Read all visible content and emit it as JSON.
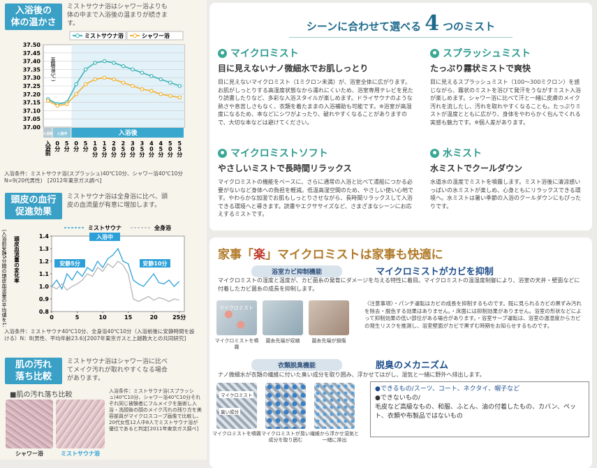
{
  "temp_section": {
    "heading": [
      "入浴後の",
      "体の温かさ"
    ],
    "intro": "ミストサウナ浴はシャワー浴よりも体の中まで入浴後の温まりが続きます。",
    "note": "入浴条件：ミストサウナ浴(スプラッシュ)40℃10分、シャワー浴40℃10分　N=9(20代男性)　[2012年東京ガス調べ]",
    "chart_data": {
      "type": "line",
      "ylabel": "直腸温(℃)",
      "phases": [
        "入浴前",
        "入浴中",
        "入浴後"
      ],
      "categories": [
        "入浴前",
        "0分",
        "5分",
        "0分",
        "5分",
        "10分",
        "15分",
        "20分",
        "25分",
        "30分",
        "35分",
        "40分",
        "45分",
        "50分",
        "55分"
      ],
      "series": [
        {
          "name": "ミストサウナ浴",
          "color": "#3bb3b8",
          "values": [
            37.17,
            37.14,
            37.15,
            37.26,
            37.35,
            37.39,
            37.4,
            37.39,
            37.37,
            37.35,
            37.33,
            37.31,
            37.29,
            37.27,
            37.25
          ]
        },
        {
          "name": "シャワー浴",
          "color": "#f2b134",
          "values": [
            37.16,
            37.13,
            37.14,
            37.2,
            37.26,
            37.29,
            37.3,
            37.29,
            37.27,
            37.25,
            37.23,
            37.22,
            37.2,
            37.19,
            37.18
          ]
        }
      ],
      "ylim": [
        37.0,
        37.5
      ],
      "yticks": [
        {
          "value": 37.0,
          "label": "37.00"
        },
        37.05,
        {
          "value": 37.1,
          "label": "37.10"
        },
        37.15,
        {
          "value": 37.2,
          "label": "37.20"
        },
        37.25,
        {
          "value": 37.3,
          "label": "37.30"
        },
        37.35,
        {
          "value": 37.4,
          "label": "37.40"
        },
        37.45,
        {
          "value": 37.5,
          "label": "37.50"
        }
      ],
      "grid": true
    }
  },
  "blood_section": {
    "heading": [
      "頭皮の血行",
      "促進効果"
    ],
    "intro": "ミストサウナ浴は全身浴に比べ、頭皮の血流量が有意に増加します。",
    "note": "入浴条件：ミストサウナ40℃10分、全身浴40℃10分（入浴前後に安静時間を設ける）N：8(男性、平均年齢23.6)[2007年東京ガスと上越教大との共同研究]",
    "chart_data": {
      "type": "line",
      "ylabel": "頭皮血流量の変化率",
      "ylabel_note": "（入浴前安静5分間の頭皮血流量の平均値を1とする）",
      "annotations": [
        "安静5分",
        "入浴中",
        "安静10分"
      ],
      "x": [
        0,
        1,
        2,
        3,
        4,
        5,
        6,
        7,
        8,
        9,
        10,
        11,
        12,
        13,
        14,
        15,
        16,
        17,
        18,
        19,
        20,
        21,
        22,
        23,
        24,
        25
      ],
      "series": [
        {
          "name": "ミストサウナ",
          "color": "#2a9fd8",
          "values": [
            1.0,
            1.05,
            0.98,
            1.1,
            1.05,
            1.12,
            1.08,
            1.15,
            1.12,
            1.2,
            1.15,
            1.22,
            1.25,
            1.3,
            1.2,
            1.18,
            1.05,
            1.02,
            1.0,
            1.05,
            1.1,
            1.03,
            1.02,
            1.05,
            1.0,
            1.04
          ]
        },
        {
          "name": "全身浴",
          "color": "#b5b5b5",
          "values": [
            1.0,
            0.98,
            1.02,
            0.97,
            1.0,
            1.02,
            1.05,
            1.1,
            1.08,
            1.15,
            1.12,
            1.18,
            1.15,
            1.2,
            1.17,
            1.1,
            0.9,
            0.88,
            0.9,
            0.92,
            0.89,
            0.91,
            0.9,
            0.88,
            0.9,
            0.89
          ]
        }
      ],
      "xlim": [
        0,
        26
      ],
      "xticks": [
        0,
        5,
        10,
        15,
        20,
        {
          "value": 25,
          "label": "25分"
        }
      ],
      "ylim": [
        0.8,
        1.4
      ],
      "yticks": [
        0.8,
        0.9,
        {
          "value": 1,
          "label": "1.0"
        },
        1.1,
        1.2,
        1.3,
        1.4
      ],
      "grid": false
    }
  },
  "skin_section": {
    "heading": [
      "肌の汚れ",
      "落ち比較"
    ],
    "intro": "ミストサウナ浴はシャワー浴に比べてメイク汚れが取れやすくなる場合があります。",
    "subheading": "■肌の汚れ落ち比較",
    "images": [
      "シャワー浴",
      "ミストサウナ浴"
    ],
    "note": "入浴条件：ミストサウナ浴(スプラッシュ)40℃10分、シャワー浴40℃10分それぞれ同じ被験者にフルメイクを施術し入浴・洗顔後の顔のメイク汚れの残り方を美容部員がマイクロスコープ画像で比較し、20代女性12人中8人でミストサウナ浴が優位であると判定[2011年東京ガス調べ]"
  },
  "mists": {
    "title": [
      "シーンに合わせて選べる",
      "4",
      "つのミスト"
    ],
    "items": [
      {
        "name": "マイクロミスト",
        "catch": "目に見えないナノ微細水でお肌しっとり",
        "body": "目に見えないマイクロミスト（1ミクロン未満）が、浴室全体に広がります。お肌がしっとりする高湿度状態なから濡れにくいため、浴室専用テレビを見たり読書したりなど、多彩な入浴スタイルが楽しめます。ドライサウナのような熱さや息苦しさもなく、衣類を着たままの入浴補助も可能です。※浴室が高湿度になるため、本などにシワがよったり、破れやすくなることがありますので、大切な本などは避けてください。"
      },
      {
        "name": "スプラッシュミスト",
        "catch": "たっぷり霧状ミストで爽快",
        "body": "目に見えるスプラッシュミスト（100〜300ミクロン）を感じながら、霧状のミストを浴びて発汗をうながすミスト入浴が楽しめます。シャワー浴に比べて汗と一緒に皮膚のメイク汚れを流したし、汚れを取れやすくなることも。たっぷりミストが温度とともに広がり、身体をやわらかく包んでくれる実感も魅力です。※個人差があります。"
      },
      {
        "name": "マイクロミストソフト",
        "catch": "やさしいミストで長時間リラックス",
        "body": "マイクロミストの機能をベースに、さらに通常の入浴と比べて湯船につかる必要がないなど身体への負担を軽減。低温高湿空間のため、やさしい使い心地です。やわらかな加湿でお肌もしっとりさせながら、長時間リラックスして入浴できる環境へと導きます。読書やエクササイズなど、さまざまなシーンにお応えするミストです。"
      },
      {
        "name": "水ミスト",
        "catch": "水ミストでクールダウン",
        "body": "水道水の温度でミストを噴霧します。ミスト浴後に清涼感いっぱいの水ミストが楽しめ、心身ともにリラックスできる環境へ。水ミストは暑い季節の入浴のクールダウンにもぴったりです。"
      }
    ]
  },
  "housework": {
    "title": [
      "家事「",
      "楽",
      "」マイクロミストは家事も快適に"
    ],
    "mold": {
      "tag": "浴室カビ抑制機能",
      "headline": "マイクロミストがカビを抑制",
      "text": "マイクロミストの湿度と温度が、カビ菌糸の発育にダメージを与える特性に着目。マイクロミストの温湿度制御により、浴室の天井・壁面などに付着したカビ菌糸の成長を抑制します。",
      "image_label": "マイクロミスト",
      "captions": [
        "マイクロミストを噴霧",
        "菌糸先端が収縮",
        "菌糸先端が損傷"
      ],
      "note": "〈注意事項〉・パンチ運転はカビの成長を抑制するものです。既に見られるカビの黒ずみ汚れを除去・脱色する効果はありません。・床面には抑制効果がありません。浴室の形状などによって抑制効果の低い部位がある場合があります。・浴室サーブ運転は、浴室の温湿度からカビの発生リスクを推測し、浴室壁面がカビで黒ずむ時期をお知らせするものです。"
    },
    "deodor": {
      "tag": "衣類脱臭機能",
      "headline": "脱臭のメカニズム",
      "text": "ナノ微細水が衣類の繊維に付いた臭い成分を取り囲み、浮かせてはがし、湿気と一緒に野外へ排出します。",
      "image_labels": [
        "マイクロミスト",
        "臭い成分"
      ],
      "captions": [
        "マイクロミストを噴霧",
        "マイクロミストが臭い成分を取り囲む",
        "繊維から浮かせ湿気と一緒に排出"
      ],
      "can": [
        "●できるもの/",
        "スーツ、コート、ネクタイ、帽子など"
      ],
      "cannot": [
        "●できないもの/",
        "毛皮など高級なもの、和服、ふとん、油の付着したもの、カバン、ペット、衣類や布製品ではないもの"
      ]
    }
  }
}
